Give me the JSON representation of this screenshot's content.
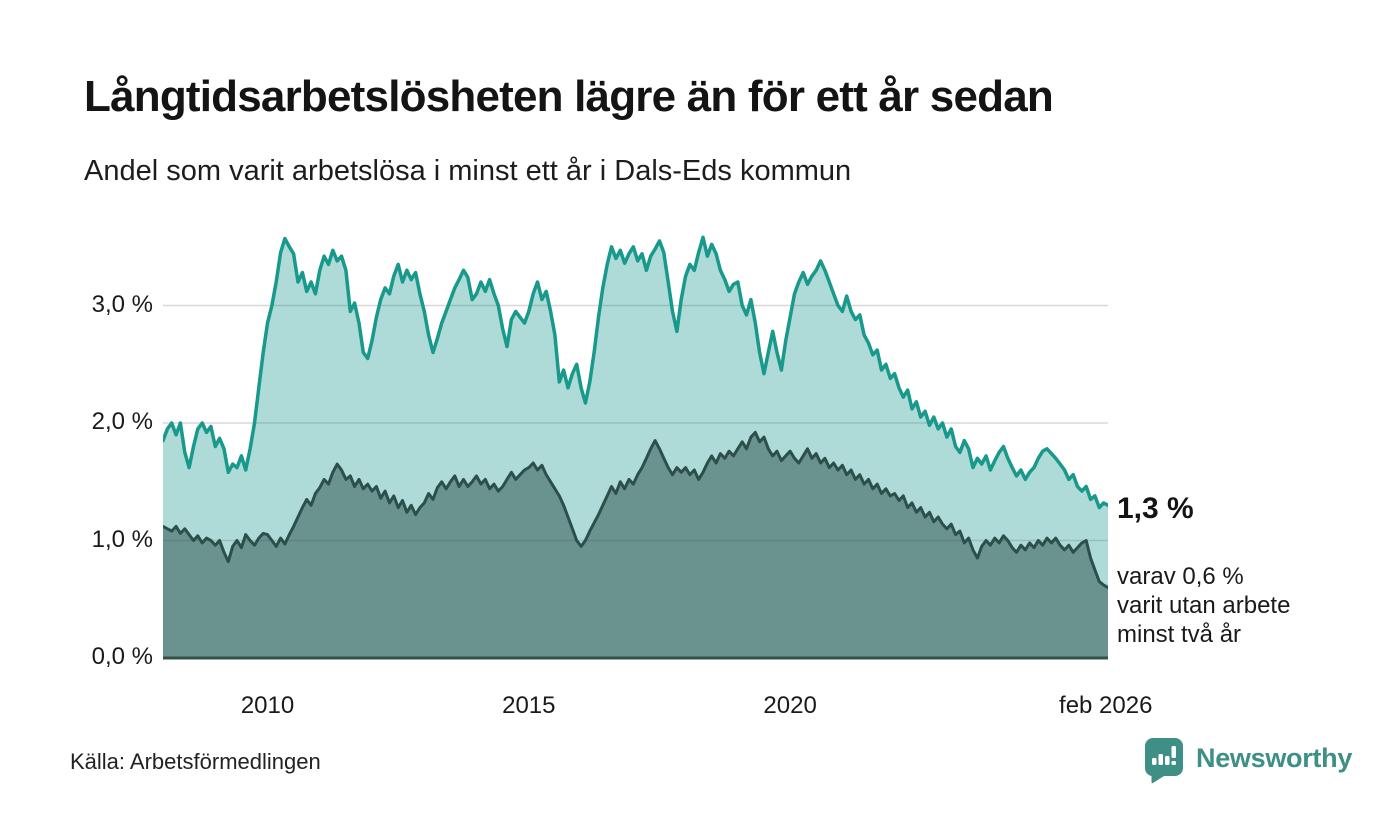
{
  "header": {
    "title": "Långtidsarbetslösheten lägre än för ett år sedan",
    "subtitle": "Andel som varit arbetslösa i minst ett år i Dals-Eds kommun"
  },
  "annotations": {
    "latest_value": "1,3 %",
    "note_lines": [
      "varav 0,6 %",
      "varit utan arbete",
      "minst två år"
    ]
  },
  "source": {
    "label": "Källa: Arbetsförmedlingen"
  },
  "logo": {
    "name": "Newsworthy",
    "color": "#3e8f86"
  },
  "chart_data": {
    "type": "area",
    "title": "Långtidsarbetslösheten lägre än för ett år sedan",
    "subtitle": "Andel som varit arbetslösa i minst ett år i Dals-Eds kommun",
    "x_unit": "time, monthly points",
    "x_start": 2008.0,
    "x_end": 2026.0833,
    "ylim": [
      0,
      3.71
    ],
    "grid": "horizontal only",
    "legend": "none (annotated at line ends)",
    "gridline_color": "#d8d8d8",
    "baseline_color": "#35504b",
    "y_ticks": [
      {
        "value": 0,
        "label": "0,0 %"
      },
      {
        "value": 1,
        "label": "1,0 %"
      },
      {
        "value": 2,
        "label": "2,0 %"
      },
      {
        "value": 3,
        "label": "3,0 %"
      }
    ],
    "x_ticks": [
      {
        "t": 2010,
        "label": "2010"
      },
      {
        "t": 2015,
        "label": "2015"
      },
      {
        "t": 2020,
        "label": "2020"
      },
      {
        "t": 2026.04,
        "label": "feb 2026"
      }
    ],
    "start_year": 2008,
    "series": [
      {
        "name": "Andel arbetslösa minst ett år",
        "end_label": "1,3 %",
        "line_color": "#18998b",
        "fill_color": "rgba(24,153,139,0.35)",
        "line_width": 3.5,
        "values_by_year": [
          [
            1.85,
            1.95,
            2.0,
            1.9,
            2.0,
            1.75,
            1.62,
            1.8,
            1.95,
            2.0,
            1.92,
            1.97
          ],
          [
            1.8,
            1.87,
            1.78,
            1.58,
            1.65,
            1.62,
            1.72,
            1.6,
            1.78,
            2.0,
            2.3,
            2.6
          ],
          [
            2.85,
            3.0,
            3.2,
            3.45,
            3.57,
            3.5,
            3.44,
            3.2,
            3.28,
            3.12,
            3.2,
            3.1
          ],
          [
            3.3,
            3.42,
            3.35,
            3.47,
            3.38,
            3.42,
            3.3,
            2.95,
            3.02,
            2.85,
            2.6,
            2.55
          ],
          [
            2.7,
            2.9,
            3.05,
            3.15,
            3.1,
            3.25,
            3.35,
            3.2,
            3.3,
            3.22,
            3.28,
            3.1
          ],
          [
            2.95,
            2.75,
            2.6,
            2.72,
            2.85,
            2.95,
            3.05,
            3.15,
            3.22,
            3.3,
            3.24,
            3.05
          ],
          [
            3.1,
            3.2,
            3.12,
            3.22,
            3.1,
            3.0,
            2.8,
            2.65,
            2.88,
            2.95,
            2.9,
            2.85
          ],
          [
            2.95,
            3.1,
            3.2,
            3.05,
            3.12,
            2.95,
            2.75,
            2.35,
            2.45,
            2.3,
            2.42,
            2.5
          ],
          [
            2.3,
            2.17,
            2.35,
            2.6,
            2.9,
            3.15,
            3.35,
            3.5,
            3.4,
            3.47,
            3.36,
            3.44
          ],
          [
            3.5,
            3.38,
            3.44,
            3.3,
            3.42,
            3.48,
            3.55,
            3.45,
            3.2,
            2.95,
            2.78,
            3.05
          ],
          [
            3.25,
            3.35,
            3.3,
            3.45,
            3.58,
            3.42,
            3.52,
            3.44,
            3.3,
            3.22,
            3.12,
            3.18
          ],
          [
            3.2,
            3.0,
            2.92,
            3.05,
            2.85,
            2.6,
            2.42,
            2.6,
            2.78,
            2.6,
            2.45,
            2.7
          ],
          [
            2.9,
            3.1,
            3.2,
            3.28,
            3.18,
            3.25,
            3.3,
            3.38,
            3.3,
            3.2,
            3.1,
            3.0
          ],
          [
            2.95,
            3.08,
            2.95,
            2.88,
            2.92,
            2.75,
            2.68,
            2.58,
            2.62,
            2.45,
            2.5,
            2.38
          ],
          [
            2.42,
            2.3,
            2.22,
            2.28,
            2.12,
            2.18,
            2.05,
            2.1,
            1.98,
            2.05,
            1.95,
            2.0
          ],
          [
            1.88,
            1.95,
            1.8,
            1.75,
            1.85,
            1.78,
            1.62,
            1.7,
            1.65,
            1.72,
            1.6,
            1.68
          ],
          [
            1.75,
            1.8,
            1.7,
            1.62,
            1.55,
            1.6,
            1.52,
            1.58,
            1.62,
            1.7,
            1.76,
            1.78
          ],
          [
            1.74,
            1.7,
            1.65,
            1.6,
            1.52,
            1.56,
            1.46,
            1.42,
            1.46,
            1.35,
            1.38,
            1.28
          ],
          [
            1.32,
            1.3
          ]
        ]
      },
      {
        "name": "varav arbetslösa minst två år",
        "end_label": "0,6 %",
        "line_color": "#2d4f4b",
        "fill_color": "rgba(45,79,75,0.52)",
        "line_width": 3,
        "values_by_year": [
          [
            1.12,
            1.1,
            1.08,
            1.12,
            1.06,
            1.1,
            1.05,
            1.0,
            1.04,
            0.98,
            1.02,
            1.0
          ],
          [
            0.96,
            1.0,
            0.9,
            0.82,
            0.95,
            1.0,
            0.94,
            1.05,
            1.0,
            0.96,
            1.02,
            1.06
          ],
          [
            1.05,
            1.0,
            0.95,
            1.02,
            0.97,
            1.05,
            1.12,
            1.2,
            1.28,
            1.35,
            1.3,
            1.4
          ],
          [
            1.45,
            1.52,
            1.48,
            1.58,
            1.65,
            1.6,
            1.52,
            1.55,
            1.46,
            1.52,
            1.44,
            1.48
          ],
          [
            1.42,
            1.46,
            1.36,
            1.42,
            1.32,
            1.38,
            1.28,
            1.34,
            1.24,
            1.3,
            1.22,
            1.28
          ],
          [
            1.32,
            1.4,
            1.35,
            1.45,
            1.5,
            1.44,
            1.5,
            1.55,
            1.46,
            1.52,
            1.46,
            1.5
          ],
          [
            1.55,
            1.48,
            1.52,
            1.44,
            1.48,
            1.42,
            1.46,
            1.52,
            1.58,
            1.52,
            1.56,
            1.6
          ],
          [
            1.62,
            1.66,
            1.6,
            1.64,
            1.56,
            1.5,
            1.44,
            1.38,
            1.3,
            1.2,
            1.1,
            1.0
          ],
          [
            0.95,
            1.0,
            1.08,
            1.15,
            1.22,
            1.3,
            1.38,
            1.46,
            1.4,
            1.5,
            1.44,
            1.52
          ],
          [
            1.48,
            1.56,
            1.62,
            1.7,
            1.78,
            1.85,
            1.78,
            1.7,
            1.62,
            1.56,
            1.62,
            1.58
          ],
          [
            1.62,
            1.56,
            1.6,
            1.52,
            1.58,
            1.66,
            1.72,
            1.66,
            1.74,
            1.7,
            1.76,
            1.72
          ],
          [
            1.78,
            1.84,
            1.78,
            1.88,
            1.92,
            1.84,
            1.88,
            1.78,
            1.72,
            1.76,
            1.68,
            1.72
          ],
          [
            1.76,
            1.7,
            1.66,
            1.72,
            1.78,
            1.7,
            1.74,
            1.66,
            1.7,
            1.62,
            1.66,
            1.6
          ],
          [
            1.64,
            1.56,
            1.6,
            1.52,
            1.56,
            1.48,
            1.52,
            1.44,
            1.48,
            1.4,
            1.44,
            1.38
          ],
          [
            1.4,
            1.34,
            1.38,
            1.28,
            1.32,
            1.24,
            1.28,
            1.2,
            1.24,
            1.16,
            1.2,
            1.14
          ],
          [
            1.1,
            1.14,
            1.05,
            1.08,
            0.98,
            1.02,
            0.92,
            0.85,
            0.95,
            1.0,
            0.96,
            1.02
          ],
          [
            0.98,
            1.04,
            1.0,
            0.94,
            0.9,
            0.96,
            0.92,
            0.98,
            0.94,
            1.0,
            0.96,
            1.02
          ],
          [
            0.98,
            1.02,
            0.96,
            0.92,
            0.96,
            0.9,
            0.94,
            0.98,
            1.0,
            0.85,
            0.75,
            0.65
          ],
          [
            0.62,
            0.6
          ]
        ]
      }
    ]
  }
}
